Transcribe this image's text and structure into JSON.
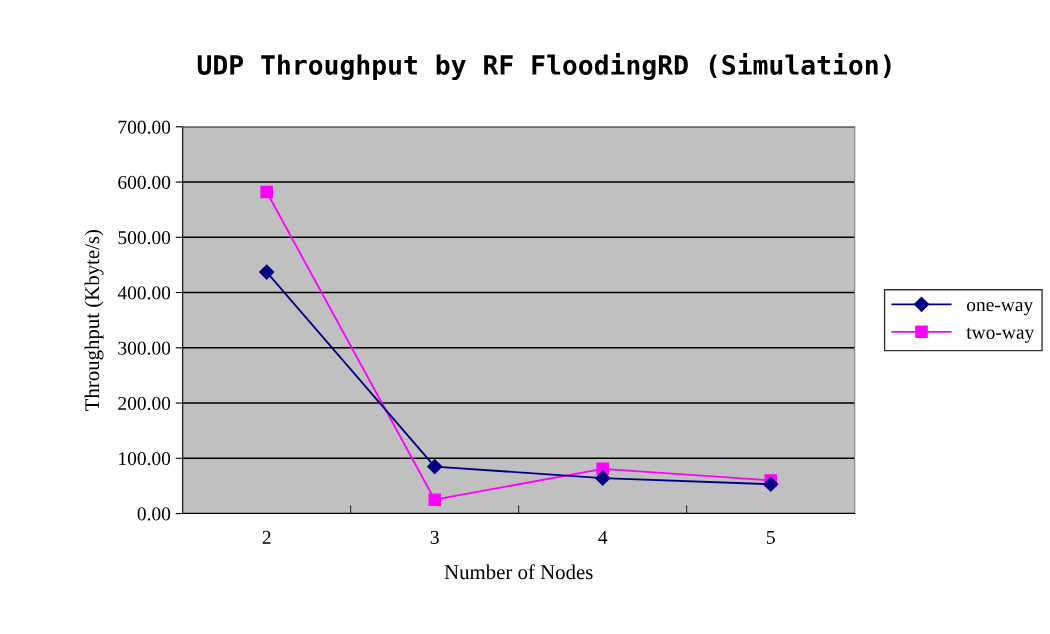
{
  "chart_data": {
    "type": "line",
    "title": "UDP Throughput by RF FloodingRD (Simulation)",
    "xlabel": "Number of Nodes",
    "ylabel": "Throughput (Kbyte/s)",
    "categories": [
      "2",
      "3",
      "4",
      "5"
    ],
    "series": [
      {
        "name": "one-way",
        "color": "#000080",
        "marker": "diamond",
        "values": [
          437,
          85,
          64,
          53
        ]
      },
      {
        "name": "two-way",
        "color": "#ff00ff",
        "marker": "square",
        "values": [
          582,
          25,
          81,
          60
        ]
      }
    ],
    "ylim": [
      0,
      700
    ],
    "yticks": [
      {
        "value": 0,
        "label": "0.00"
      },
      {
        "value": 100,
        "label": "100.00"
      },
      {
        "value": 200,
        "label": "200.00"
      },
      {
        "value": 300,
        "label": "300.00"
      },
      {
        "value": 400,
        "label": "400.00"
      },
      {
        "value": 500,
        "label": "500.00"
      },
      {
        "value": 600,
        "label": "600.00"
      },
      {
        "value": 700,
        "label": "700.00"
      }
    ],
    "grid": "y",
    "legend": "right",
    "line_style": "solid"
  }
}
